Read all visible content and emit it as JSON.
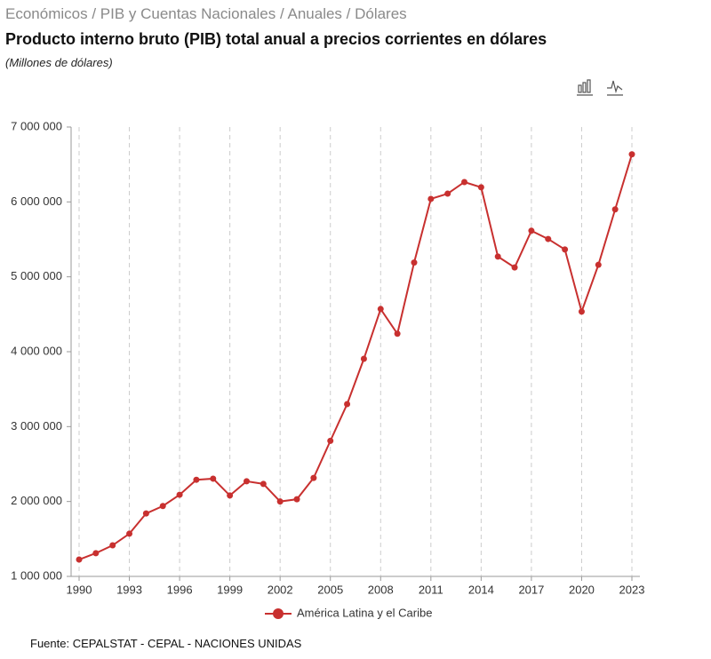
{
  "header": {
    "breadcrumb": "Económicos / PIB y Cuentas Nacionales / Anuales / Dólares",
    "source": "Fuente: CEPALSTAT - CEPAL - NACIONES UNIDAS"
  },
  "chart_data": {
    "type": "line",
    "title": "Producto interno bruto (PIB) total anual a precios corrientes en dólares",
    "subtitle": "(Millones de dólares)",
    "x": [
      1990,
      1991,
      1992,
      1993,
      1994,
      1995,
      1996,
      1997,
      1998,
      1999,
      2000,
      2001,
      2002,
      2003,
      2004,
      2005,
      2006,
      2007,
      2008,
      2009,
      2010,
      2011,
      2012,
      2013,
      2014,
      2015,
      2016,
      2017,
      2018,
      2019,
      2020,
      2021,
      2022,
      2023
    ],
    "series": [
      {
        "name": "América Latina y el Caribe",
        "color": "#c8302f",
        "values": [
          1225000,
          1310000,
          1415000,
          1570000,
          1840000,
          1940000,
          2090000,
          2290000,
          2305000,
          2080000,
          2270000,
          2235000,
          2000000,
          2030000,
          2315000,
          2810000,
          3300000,
          3905000,
          4570000,
          4240000,
          5190000,
          6040000,
          6110000,
          6265000,
          6195000,
          5270000,
          5125000,
          5615000,
          5505000,
          5365000,
          4535000,
          5160000,
          5900000,
          6635000
        ]
      }
    ],
    "xlim": [
      1990,
      2023
    ],
    "xticks": [
      1990,
      1993,
      1996,
      1999,
      2002,
      2005,
      2008,
      2011,
      2014,
      2017,
      2020,
      2023
    ],
    "ylim": [
      1000000,
      7000000
    ],
    "yticks": [
      {
        "value": 1000000,
        "label": "1 000 000"
      },
      {
        "value": 2000000,
        "label": "2 000 000"
      },
      {
        "value": 3000000,
        "label": "3 000 000"
      },
      {
        "value": 4000000,
        "label": "4 000 000"
      },
      {
        "value": 5000000,
        "label": "5 000 000"
      },
      {
        "value": 6000000,
        "label": "6 000 000"
      },
      {
        "value": 7000000,
        "label": "7 000 000"
      }
    ],
    "grid": "x"
  }
}
